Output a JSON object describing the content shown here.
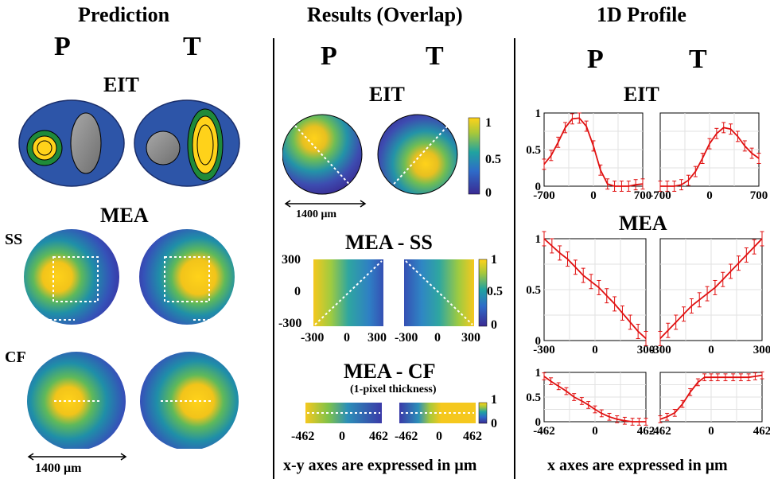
{
  "columns": {
    "prediction": {
      "title": "Prediction",
      "p_label": "P",
      "t_label": "T",
      "eit_label": "EIT",
      "mea_label": "MEA",
      "ss_label": "SS",
      "cf_label": "CF",
      "scale_bar": "1400 μm"
    },
    "results": {
      "title": "Results (Overlap)",
      "p_label": "P",
      "t_label": "T",
      "eit_label": "EIT",
      "eit_scale_bar": "1400 μm",
      "colorbar_ticks": [
        "1",
        "0.5",
        "0"
      ],
      "mea_ss_label": "MEA - SS",
      "mea_ss_yticks": [
        "300",
        "0",
        "-300"
      ],
      "mea_ss_xticks_left": [
        "-300",
        "0",
        "300"
      ],
      "mea_ss_xticks_right": [
        "-300",
        "0",
        "300"
      ],
      "mea_cf_label": "MEA - CF",
      "mea_cf_note": "(1-pixel thickness)",
      "mea_cf_colorbar_ticks": [
        "1",
        "0"
      ],
      "mea_cf_xticks_left": [
        "-462",
        "0",
        "462"
      ],
      "mea_cf_xticks_right": [
        "-462",
        "0",
        "462"
      ],
      "footer": "x-y axes are expressed in μm"
    },
    "profile": {
      "title": "1D Profile",
      "p_label": "P",
      "t_label": "T",
      "eit_label": "EIT",
      "mea_label": "MEA",
      "footer": "x axes are expressed in μm"
    }
  },
  "colors": {
    "dark_blue": "#2d55a8",
    "green": "#1f8a3a",
    "yellow": "#ffd21a",
    "gray": "#8c8c8c",
    "curve": "#e01010"
  },
  "chart_data": [
    {
      "type": "line",
      "panel": "EIT P",
      "x": [
        -700,
        -600,
        -500,
        -400,
        -300,
        -200,
        -100,
        0,
        100,
        200,
        300,
        400,
        500,
        600,
        700
      ],
      "y": [
        0.3,
        0.42,
        0.6,
        0.8,
        0.92,
        0.93,
        0.82,
        0.55,
        0.22,
        0.03,
        0.0,
        0.0,
        0.0,
        0.02,
        0.03
      ],
      "xlim": [
        -700,
        700
      ],
      "ylim": [
        0,
        1
      ],
      "xticks": [
        "-700",
        "0",
        "700"
      ],
      "yticks": [
        "1",
        "0.5",
        "0"
      ]
    },
    {
      "type": "line",
      "panel": "EIT T",
      "x": [
        -700,
        -600,
        -500,
        -400,
        -300,
        -200,
        -100,
        0,
        100,
        200,
        300,
        400,
        500,
        600,
        700
      ],
      "y": [
        0.0,
        0.0,
        0.0,
        0.02,
        0.08,
        0.2,
        0.38,
        0.58,
        0.72,
        0.8,
        0.78,
        0.68,
        0.55,
        0.45,
        0.38
      ],
      "xlim": [
        -700,
        700
      ],
      "ylim": [
        0,
        1
      ],
      "xticks": [
        "-700",
        "0",
        "700"
      ],
      "yticks": []
    },
    {
      "type": "line",
      "panel": "MEA SS P",
      "x": [
        -300,
        -250,
        -200,
        -150,
        -100,
        -50,
        0,
        50,
        100,
        150,
        200,
        250,
        300,
        350
      ],
      "y": [
        1.0,
        0.93,
        0.86,
        0.8,
        0.72,
        0.64,
        0.58,
        0.52,
        0.44,
        0.36,
        0.27,
        0.18,
        0.09,
        0.02
      ],
      "xlim": [
        -300,
        350
      ],
      "ylim": [
        0,
        1
      ],
      "xticks": [
        "-300",
        "0",
        "300"
      ],
      "yticks": [
        "1",
        "0.5",
        "0"
      ]
    },
    {
      "type": "line",
      "panel": "MEA SS T",
      "x": [
        -300,
        -250,
        -200,
        -150,
        -100,
        -50,
        0,
        50,
        100,
        150,
        200,
        250,
        300,
        350
      ],
      "y": [
        0.02,
        0.1,
        0.18,
        0.26,
        0.34,
        0.4,
        0.46,
        0.52,
        0.6,
        0.68,
        0.76,
        0.84,
        0.92,
        1.0
      ],
      "xlim": [
        -300,
        350
      ],
      "ylim": [
        0,
        1
      ],
      "xticks": [
        "-300",
        "0",
        "300"
      ],
      "yticks": []
    },
    {
      "type": "line",
      "panel": "MEA CF P",
      "x": [
        -462,
        -400,
        -330,
        -260,
        -190,
        -120,
        -60,
        0,
        60,
        130,
        200,
        270,
        340,
        400,
        462
      ],
      "y": [
        0.92,
        0.82,
        0.72,
        0.62,
        0.5,
        0.42,
        0.34,
        0.25,
        0.17,
        0.1,
        0.05,
        0.02,
        0.0,
        0.0,
        0.0
      ],
      "xlim": [
        -462,
        462
      ],
      "ylim": [
        0,
        1
      ],
      "xticks": [
        "-462",
        "0",
        "462"
      ],
      "yticks": [
        "1",
        "0.5",
        "0"
      ]
    },
    {
      "type": "line",
      "panel": "MEA CF T",
      "x": [
        -462,
        -400,
        -330,
        -260,
        -190,
        -120,
        -60,
        0,
        60,
        130,
        200,
        270,
        340,
        400,
        462
      ],
      "y": [
        0.05,
        0.1,
        0.18,
        0.36,
        0.6,
        0.8,
        0.9,
        0.9,
        0.9,
        0.9,
        0.9,
        0.9,
        0.9,
        0.92,
        0.94
      ],
      "xlim": [
        -462,
        462
      ],
      "ylim": [
        0,
        1
      ],
      "xticks": [
        "-462",
        "0",
        "462"
      ],
      "yticks": []
    }
  ]
}
